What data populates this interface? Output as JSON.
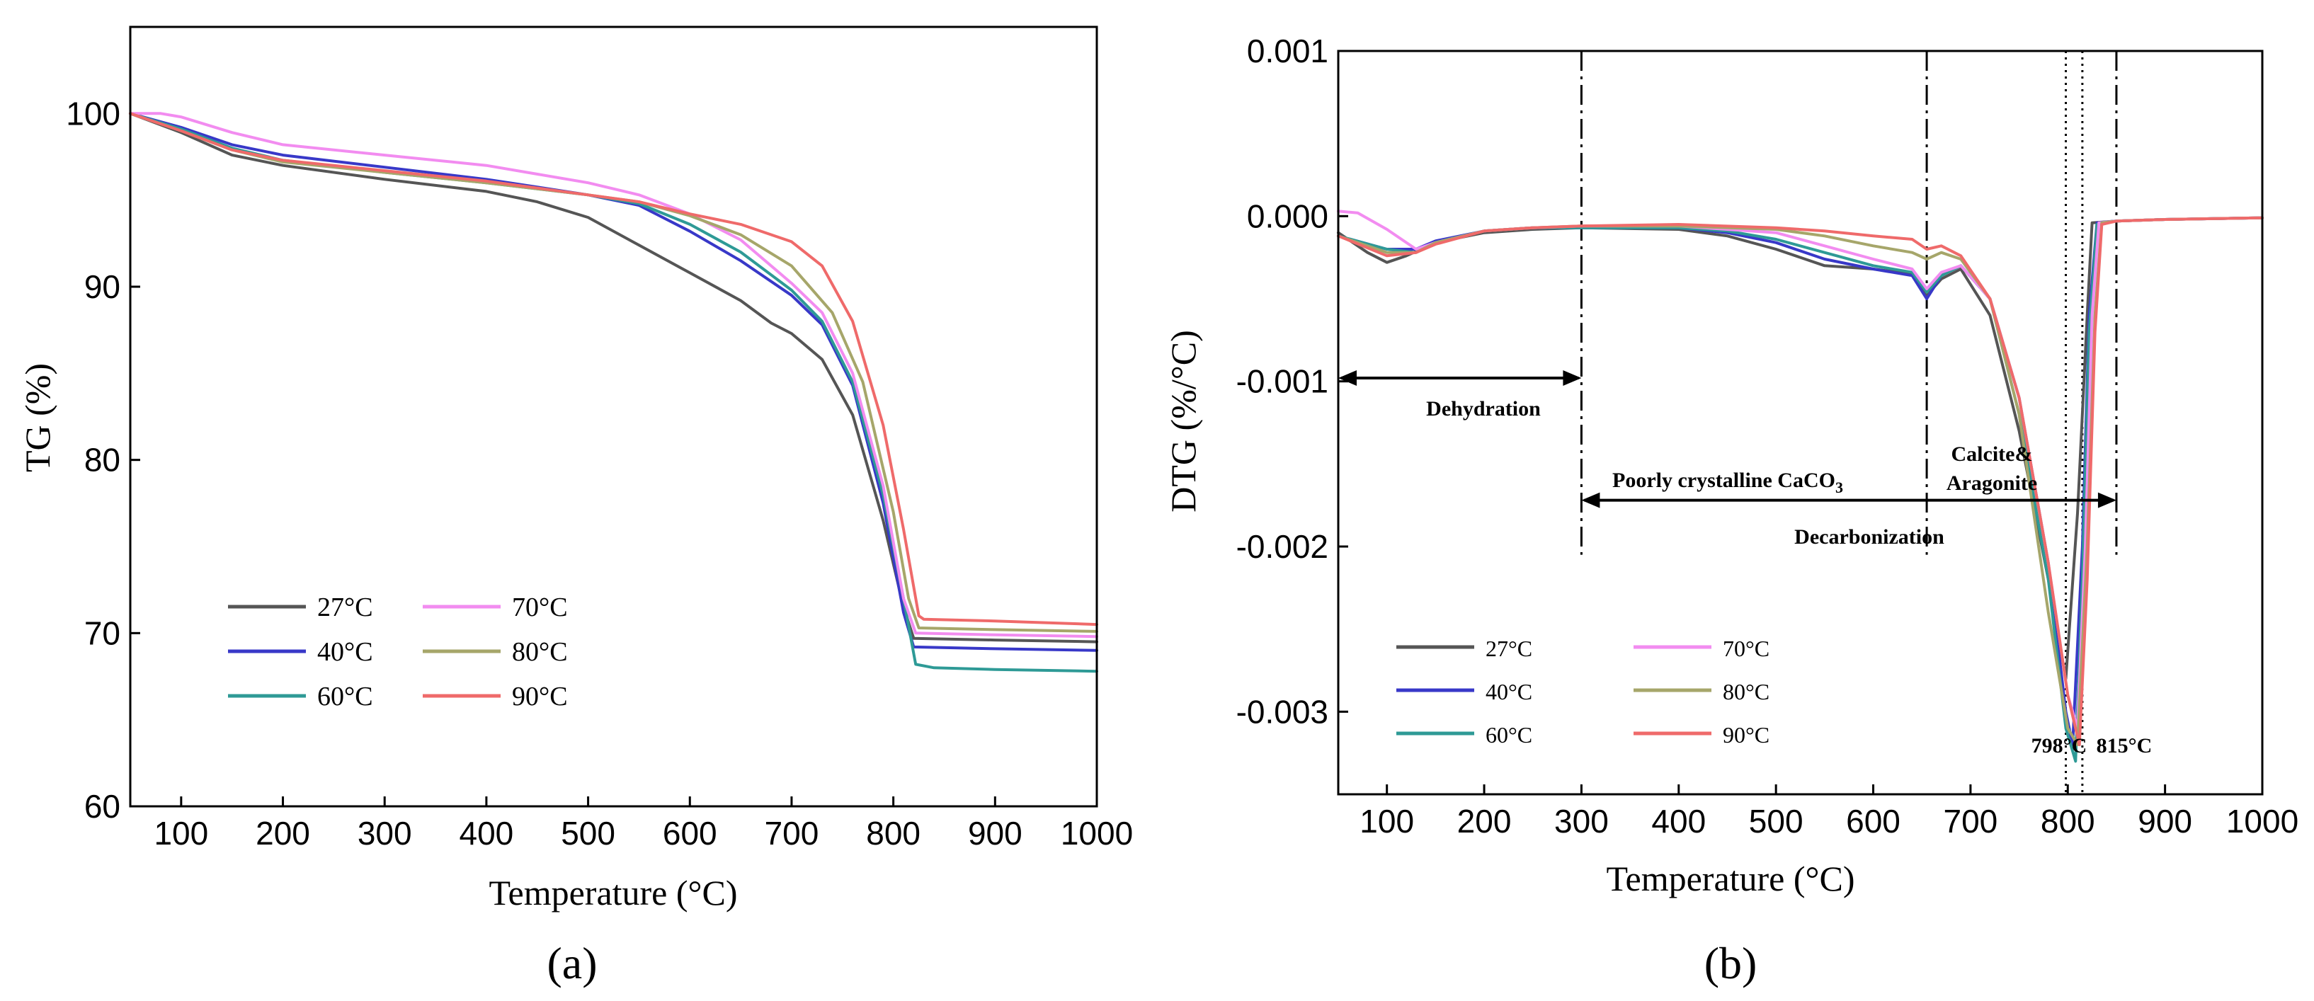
{
  "panel_labels": [
    "(a)",
    "(b)"
  ],
  "colors": {
    "27": "#555555",
    "40": "#3838c8",
    "60": "#2e9a96",
    "70": "#f28cf0",
    "80": "#a6a66a",
    "90": "#ef6a6a"
  },
  "chart_data": [
    {
      "type": "line",
      "xlabel": "Temperature (°C)",
      "ylabel": "TG (%)",
      "xlim": [
        50,
        1000
      ],
      "ylim": [
        60,
        105
      ],
      "xticks": [
        "100",
        "200",
        "300",
        "400",
        "500",
        "600",
        "700",
        "800",
        "900",
        "1000"
      ],
      "yticks": [
        "60",
        "70",
        "80",
        "90",
        "100"
      ],
      "legend_placement": "bottom-left",
      "series": [
        {
          "name": "27°C",
          "color_key": "27",
          "x": [
            50,
            100,
            150,
            200,
            300,
            400,
            450,
            500,
            550,
            600,
            650,
            680,
            700,
            730,
            760,
            790,
            810,
            820,
            900,
            1000
          ],
          "y": [
            100,
            98.9,
            97.6,
            97.0,
            96.2,
            95.5,
            94.9,
            94.0,
            92.4,
            90.8,
            89.2,
            87.9,
            87.3,
            85.8,
            82.6,
            76.5,
            71.5,
            69.7,
            69.6,
            69.5
          ]
        },
        {
          "name": "40°C",
          "color_key": "40",
          "x": [
            50,
            100,
            150,
            200,
            300,
            400,
            500,
            550,
            600,
            650,
            700,
            730,
            760,
            790,
            810,
            820,
            900,
            1000
          ],
          "y": [
            100,
            99.2,
            98.2,
            97.6,
            96.9,
            96.2,
            95.3,
            94.7,
            93.2,
            91.5,
            89.5,
            87.8,
            84.3,
            77.5,
            71.2,
            69.2,
            69.1,
            69.0
          ]
        },
        {
          "name": "60°C",
          "color_key": "60",
          "x": [
            50,
            100,
            150,
            200,
            300,
            400,
            500,
            550,
            600,
            650,
            700,
            730,
            760,
            790,
            810,
            822,
            840,
            900,
            1000
          ],
          "y": [
            100,
            99.1,
            98.0,
            97.3,
            96.6,
            96.0,
            95.3,
            94.8,
            93.6,
            92.0,
            89.8,
            88.0,
            84.5,
            78.0,
            72.0,
            68.2,
            68.0,
            67.9,
            67.8
          ]
        },
        {
          "name": "70°C",
          "color_key": "70",
          "x": [
            50,
            80,
            100,
            150,
            200,
            300,
            400,
            500,
            550,
            600,
            650,
            700,
            730,
            760,
            790,
            810,
            822,
            900,
            1000
          ],
          "y": [
            100,
            100,
            99.8,
            98.9,
            98.2,
            97.6,
            97.0,
            96.0,
            95.3,
            94.2,
            92.7,
            90.2,
            88.5,
            85.0,
            78.5,
            72.0,
            70.0,
            69.9,
            69.8
          ]
        },
        {
          "name": "80°C",
          "color_key": "80",
          "x": [
            50,
            100,
            150,
            200,
            300,
            400,
            500,
            550,
            600,
            650,
            700,
            740,
            770,
            800,
            815,
            825,
            900,
            1000
          ],
          "y": [
            100,
            99.0,
            97.9,
            97.2,
            96.6,
            96.0,
            95.3,
            94.9,
            94.1,
            93.0,
            91.2,
            88.5,
            84.5,
            77.0,
            72.0,
            70.3,
            70.2,
            70.1
          ]
        },
        {
          "name": "90°C",
          "color_key": "90",
          "x": [
            50,
            100,
            150,
            200,
            300,
            400,
            500,
            550,
            600,
            650,
            700,
            730,
            760,
            790,
            810,
            825,
            830,
            900,
            1000
          ],
          "y": [
            100,
            99.0,
            97.9,
            97.3,
            96.7,
            96.1,
            95.3,
            94.9,
            94.2,
            93.6,
            92.6,
            91.2,
            88.0,
            82.0,
            76.0,
            71.0,
            70.8,
            70.7,
            70.5
          ]
        }
      ]
    },
    {
      "type": "line",
      "xlabel": "Temperature (°C)",
      "ylabel": "DTG (%/°C)",
      "xlim": [
        50,
        1000
      ],
      "ylim": [
        -0.0035,
        0.001
      ],
      "xticks": [
        "100",
        "200",
        "300",
        "400",
        "500",
        "600",
        "700",
        "800",
        "900",
        "1000"
      ],
      "yticks": [
        "0.001",
        "0.000",
        "-0.001",
        "-0.002",
        "-0.003"
      ],
      "legend_placement": "bottom-left",
      "vlines_dashdot": [
        300,
        655,
        850
      ],
      "vlines_dotted": [
        798,
        815
      ],
      "annotations": {
        "dehydration": "Dehydration",
        "poorly_prefix": "Poorly crystalline CaCO",
        "poorly_sub": "3",
        "calcite_line1": "Calcite&",
        "calcite_line2": "Aragonite",
        "decarbonization": "Decarbonization",
        "peak1": "798°C",
        "peak2": "815°C"
      },
      "arrows": [
        {
          "from": 50,
          "to": 300,
          "y": -0.00098
        },
        {
          "from": 300,
          "to": 850,
          "y": -0.00172
        }
      ],
      "series": [
        {
          "name": "27°C",
          "color_key": "27",
          "x": [
            50,
            80,
            100,
            120,
            150,
            200,
            250,
            300,
            400,
            450,
            500,
            550,
            600,
            640,
            655,
            670,
            690,
            720,
            750,
            780,
            798,
            810,
            820,
            825,
            850,
            900,
            1000
          ],
          "y": [
            -0.0001,
            -0.00022,
            -0.00028,
            -0.00024,
            -0.00016,
            -0.0001,
            -8e-05,
            -7e-05,
            -8e-05,
            -0.00012,
            -0.0002,
            -0.0003,
            -0.00032,
            -0.00035,
            -0.00048,
            -0.00038,
            -0.00032,
            -0.0006,
            -0.0013,
            -0.0022,
            -0.0028,
            -0.0018,
            -0.0006,
            -4e-05,
            -3e-05,
            -2e-05,
            -1e-05
          ]
        },
        {
          "name": "40°C",
          "color_key": "40",
          "x": [
            50,
            100,
            130,
            150,
            200,
            250,
            300,
            400,
            450,
            500,
            550,
            600,
            640,
            655,
            670,
            690,
            720,
            750,
            780,
            798,
            805,
            815,
            822,
            830,
            850,
            900,
            1000
          ],
          "y": [
            -0.00012,
            -0.0002,
            -0.0002,
            -0.00015,
            -9e-05,
            -7e-05,
            -7e-05,
            -7e-05,
            -0.0001,
            -0.00016,
            -0.00026,
            -0.00032,
            -0.00036,
            -0.0005,
            -0.00036,
            -0.0003,
            -0.0005,
            -0.0011,
            -0.0021,
            -0.003,
            -0.0032,
            -0.002,
            -0.0006,
            -4e-05,
            -3e-05,
            -2e-05,
            -1e-05
          ]
        },
        {
          "name": "60°C",
          "color_key": "60",
          "x": [
            50,
            100,
            130,
            150,
            200,
            250,
            300,
            400,
            450,
            500,
            550,
            600,
            640,
            655,
            670,
            690,
            720,
            750,
            780,
            798,
            808,
            815,
            822,
            830,
            850,
            900,
            1000
          ],
          "y": [
            -0.00012,
            -0.0002,
            -0.00022,
            -0.00016,
            -9e-05,
            -7e-05,
            -7e-05,
            -7e-05,
            -9e-05,
            -0.00014,
            -0.00022,
            -0.0003,
            -0.00034,
            -0.00046,
            -0.00036,
            -0.0003,
            -0.0005,
            -0.0012,
            -0.0022,
            -0.0031,
            -0.0033,
            -0.0022,
            -0.0007,
            -5e-05,
            -3e-05,
            -2e-05,
            -1e-05
          ]
        },
        {
          "name": "70°C",
          "color_key": "70",
          "x": [
            50,
            70,
            100,
            130,
            150,
            200,
            250,
            300,
            400,
            500,
            550,
            600,
            640,
            655,
            670,
            690,
            720,
            750,
            780,
            800,
            810,
            818,
            825,
            832,
            850,
            900,
            1000
          ],
          "y": [
            3e-05,
            2e-05,
            -8e-05,
            -0.0002,
            -0.00016,
            -9e-05,
            -7e-05,
            -6e-05,
            -6e-05,
            -0.0001,
            -0.00018,
            -0.00026,
            -0.00032,
            -0.00044,
            -0.00034,
            -0.0003,
            -0.0005,
            -0.0011,
            -0.0021,
            -0.0029,
            -0.0031,
            -0.002,
            -0.0006,
            -4e-05,
            -3e-05,
            -2e-05,
            -1e-05
          ]
        },
        {
          "name": "80°C",
          "color_key": "80",
          "x": [
            50,
            100,
            130,
            150,
            200,
            250,
            300,
            400,
            500,
            550,
            600,
            640,
            655,
            670,
            690,
            720,
            750,
            780,
            800,
            810,
            820,
            828,
            835,
            850,
            900,
            1000
          ],
          "y": [
            -0.00012,
            -0.00022,
            -0.00022,
            -0.00016,
            -9e-05,
            -7e-05,
            -6e-05,
            -6e-05,
            -8e-05,
            -0.00012,
            -0.00018,
            -0.00022,
            -0.00026,
            -0.00022,
            -0.00026,
            -0.0005,
            -0.0012,
            -0.0024,
            -0.0031,
            -0.0032,
            -0.002,
            -0.0006,
            -4e-05,
            -3e-05,
            -2e-05,
            -1e-05
          ]
        },
        {
          "name": "90°C",
          "color_key": "90",
          "x": [
            50,
            100,
            130,
            150,
            200,
            250,
            300,
            400,
            500,
            550,
            600,
            640,
            655,
            670,
            690,
            720,
            750,
            780,
            800,
            812,
            820,
            828,
            835,
            850,
            900,
            1000
          ],
          "y": [
            -0.00012,
            -0.00024,
            -0.00022,
            -0.00017,
            -9e-05,
            -7e-05,
            -6e-05,
            -5e-05,
            -7e-05,
            -9e-05,
            -0.00012,
            -0.00014,
            -0.0002,
            -0.00018,
            -0.00024,
            -0.0005,
            -0.0011,
            -0.0021,
            -0.0029,
            -0.0032,
            -0.0022,
            -0.0007,
            -5e-05,
            -3e-05,
            -2e-05,
            -1e-05
          ]
        }
      ]
    }
  ]
}
